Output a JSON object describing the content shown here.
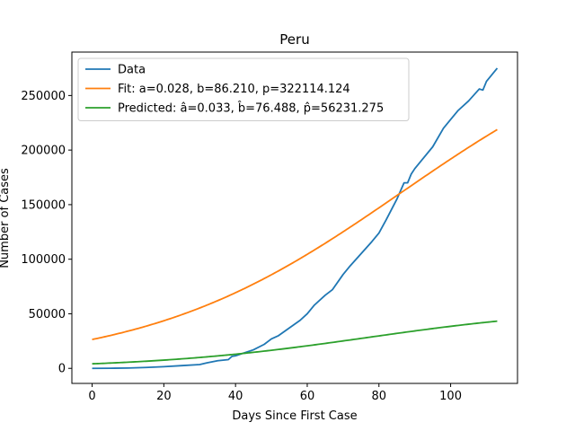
{
  "chart_data": {
    "type": "line",
    "title": "Peru",
    "xlabel": "Days Since First Case",
    "ylabel": "Number of Cases",
    "xlim": [
      -5.65,
      118.65
    ],
    "ylim": [
      -13800,
      289800
    ],
    "xticks": [
      0,
      20,
      40,
      60,
      80,
      100
    ],
    "yticks": [
      0,
      50000,
      100000,
      150000,
      200000,
      250000
    ],
    "grid": false,
    "legend_position": "upper-left",
    "series": [
      {
        "name": "Data",
        "color": "#1f77b4",
        "x": [
          0,
          5,
          10,
          15,
          20,
          25,
          30,
          32,
          35,
          38,
          39,
          40,
          45,
          48,
          50,
          52,
          55,
          58,
          60,
          62,
          65,
          67,
          70,
          72,
          75,
          78,
          80,
          82,
          85,
          87,
          88,
          89,
          90,
          92,
          95,
          98,
          100,
          102,
          105,
          108,
          109,
          110,
          113
        ],
        "y": [
          0,
          100,
          300,
          800,
          1500,
          2500,
          3500,
          5000,
          7000,
          8000,
          11000,
          11500,
          17000,
          22000,
          27000,
          30000,
          37000,
          44000,
          50000,
          58000,
          67000,
          72000,
          86000,
          94000,
          105000,
          116000,
          124000,
          136000,
          155000,
          170000,
          170000,
          178000,
          183000,
          191000,
          203000,
          220000,
          228000,
          236000,
          245000,
          256000,
          255000,
          263000,
          275000
        ]
      },
      {
        "name": "Fit: a=0.028, b=86.210, p=322114.124",
        "color": "#ff7f0e",
        "formula": {
          "a": 0.028,
          "b": 86.21,
          "p": 322114.124
        },
        "x_range": [
          0,
          113
        ]
      },
      {
        "name": "Predicted: â=0.033, b̂=76.488, p̂=56231.275",
        "color": "#2ca02c",
        "formula": {
          "a": 0.033,
          "b": 76.488,
          "p": 56231.275
        },
        "x_range": [
          0,
          113
        ]
      }
    ]
  }
}
